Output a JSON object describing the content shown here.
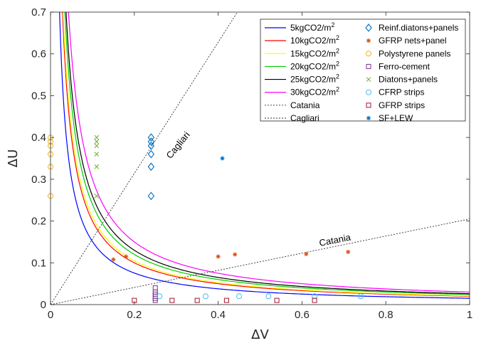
{
  "chart_data": {
    "type": "scatter",
    "xlabel": "ΔV",
    "ylabel": "ΔU",
    "xlim": [
      0,
      1
    ],
    "ylim": [
      0,
      0.7
    ],
    "xticks": [
      "0",
      "0.2",
      "0.4",
      "0.6",
      "0.8",
      "1"
    ],
    "yticks": [
      "0",
      "0.1",
      "0.2",
      "0.3",
      "0.4",
      "0.5",
      "0.6",
      "0.7"
    ],
    "grid": false,
    "legend_position": "top-right",
    "curves": [
      {
        "name": "5kgCO2/m",
        "sup": "2",
        "k": 0.0151,
        "color": "#0000ff"
      },
      {
        "name": "10kgCO2/m",
        "sup": "2",
        "k": 0.02,
        "color": "#ff0000"
      },
      {
        "name": "15kgCO2/m",
        "sup": "2",
        "k": 0.021,
        "color": "#ffff00"
      },
      {
        "name": "20kgCO2/m",
        "sup": "2",
        "k": 0.024,
        "color": "#00cc00"
      },
      {
        "name": "25kgCO2/m",
        "sup": "2",
        "k": 0.026,
        "color": "#000000"
      },
      {
        "name": "30kgCO2/m",
        "sup": "2",
        "k": 0.03,
        "color": "#ff00ff"
      }
    ],
    "lines": [
      {
        "name": "Catania",
        "slope": 0.205,
        "color": "#333333",
        "annotation": "Catania",
        "annot_x": 0.68,
        "annot_y": 0.147,
        "annot_angle": -11
      },
      {
        "name": "Cagliari",
        "slope": 1.57,
        "color": "#333333",
        "annotation": "Cagliari",
        "annot_x": 0.31,
        "annot_y": 0.377,
        "annot_angle": -51
      }
    ],
    "scatter": [
      {
        "name": "Reinf.diatons+panels",
        "marker": "diamond",
        "color": "#0070c0",
        "points": [
          [
            0.24,
            0.26
          ],
          [
            0.24,
            0.33
          ],
          [
            0.24,
            0.36
          ],
          [
            0.24,
            0.38
          ],
          [
            0.24,
            0.39
          ],
          [
            0.24,
            0.4
          ]
        ]
      },
      {
        "name": "GFRP nets+panel",
        "marker": "asterisk",
        "color": "#d95319",
        "points": [
          [
            0.15,
            0.108
          ],
          [
            0.18,
            0.115
          ],
          [
            0.4,
            0.115
          ],
          [
            0.44,
            0.12
          ],
          [
            0.61,
            0.121
          ],
          [
            0.71,
            0.126
          ]
        ]
      },
      {
        "name": "Polystyrene panels",
        "marker": "circle",
        "color": "#edb120",
        "points": [
          [
            0.0,
            0.26
          ],
          [
            0.0,
            0.33
          ],
          [
            0.0,
            0.36
          ],
          [
            0.0,
            0.38
          ],
          [
            0.0,
            0.39
          ],
          [
            0.0,
            0.4
          ]
        ]
      },
      {
        "name": "Ferro-cement",
        "marker": "square",
        "color": "#7e2f8e",
        "points": [
          [
            0.25,
            0.01
          ],
          [
            0.25,
            0.015
          ],
          [
            0.25,
            0.02
          ],
          [
            0.25,
            0.025
          ],
          [
            0.25,
            0.03
          ],
          [
            0.25,
            0.04
          ]
        ]
      },
      {
        "name": "Diatons+panels",
        "marker": "cross",
        "color": "#77ac30",
        "points": [
          [
            0.11,
            0.26
          ],
          [
            0.11,
            0.33
          ],
          [
            0.11,
            0.36
          ],
          [
            0.11,
            0.38
          ],
          [
            0.11,
            0.39
          ],
          [
            0.11,
            0.4
          ]
        ]
      },
      {
        "name": "CFRP strips",
        "marker": "circle",
        "color": "#4dbeee",
        "points": [
          [
            0.26,
            0.02
          ],
          [
            0.37,
            0.02
          ],
          [
            0.45,
            0.02
          ],
          [
            0.52,
            0.02
          ],
          [
            0.63,
            0.02
          ],
          [
            0.74,
            0.02
          ]
        ]
      },
      {
        "name": "GFRP strips",
        "marker": "square",
        "color": "#a2142f",
        "points": [
          [
            0.2,
            0.01
          ],
          [
            0.29,
            0.01
          ],
          [
            0.35,
            0.01
          ],
          [
            0.42,
            0.01
          ],
          [
            0.54,
            0.01
          ],
          [
            0.63,
            0.01
          ]
        ]
      },
      {
        "name": "SF+LEW",
        "marker": "asterisk",
        "color": "#0072bd",
        "points": [
          [
            0.41,
            0.35
          ]
        ]
      }
    ]
  }
}
